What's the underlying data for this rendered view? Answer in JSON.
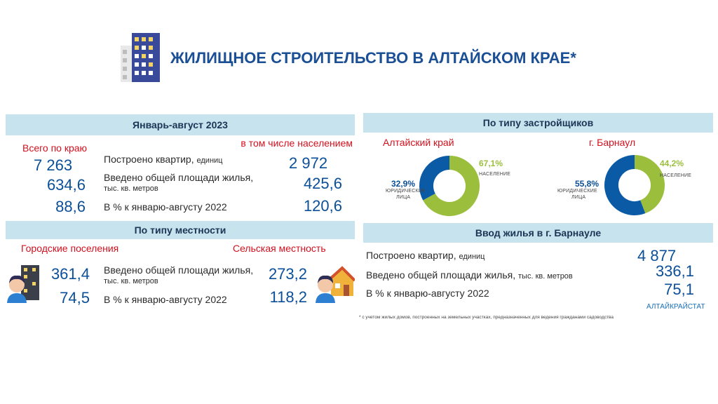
{
  "header": {
    "title": "ЖИЛИЩНОЕ СТРОИТЕЛЬСТВО В АЛТАЙСКОМ КРАЕ*"
  },
  "period_panel": {
    "title": "Январь-август 2023",
    "col_total": "Всего по краю",
    "col_population": "в том числе населением",
    "rows": [
      {
        "label": "Построено квартир,",
        "unit": "единиц",
        "total": "7 263",
        "population": "2 972"
      },
      {
        "label": "Введено общей площади жилья,",
        "unit": "тыс. кв. метров",
        "total": "634,6",
        "population": "425,6"
      },
      {
        "label": "В % к январю-августу 2022",
        "unit": "",
        "total": "88,6",
        "population": "120,6"
      }
    ]
  },
  "area_panel": {
    "title": "По типу местности",
    "urban_title": "Городские поселения",
    "rural_title": "Сельская местность",
    "rows": [
      {
        "label": "Введено общей площади жилья,",
        "unit": "тыс. кв. метров",
        "urban": "361,4",
        "rural": "273,2"
      },
      {
        "label": "В % к январю-августу 2022",
        "unit": "",
        "urban": "74,5",
        "rural": "118,2"
      }
    ]
  },
  "developer_panel": {
    "title": "По типу застройщиков",
    "charts": [
      {
        "title": "Алтайский край",
        "population_pct": "67,1%",
        "population_label": "НАСЕЛЕНИЕ",
        "legal_pct": "32,9%",
        "legal_label_1": "ЮРИДИЧЕСКИЕ",
        "legal_label_2": "ЛИЦА",
        "population_share": 0.671
      },
      {
        "title": "г. Барнаул",
        "population_pct": "44,2%",
        "population_label": "НАСЕЛЕНИЕ",
        "legal_pct": "55,8%",
        "legal_label_1": "ЮРИДИЧЕСКИЕ",
        "legal_label_2": "ЛИЦА",
        "population_share": 0.442
      }
    ],
    "colors": {
      "population": "#9bbf3d",
      "legal": "#0b5aa5"
    }
  },
  "barnaul_panel": {
    "title": "Ввод жилья в г. Барнауле",
    "rows": [
      {
        "label": "Построено квартир,",
        "unit": "единиц",
        "value": "4 877"
      },
      {
        "label": "Введено общей площади жилья,",
        "unit": "тыс. кв. метров",
        "value": "336,1"
      },
      {
        "label": "В % к январю-августу 2022",
        "unit": "",
        "value": "75,1"
      }
    ],
    "source": "АЛТАЙКРАЙСТАТ"
  },
  "footnote": "* с учетом жилых домов, построенных на земельных участках, предназначенных для ведения гражданами садоводства"
}
